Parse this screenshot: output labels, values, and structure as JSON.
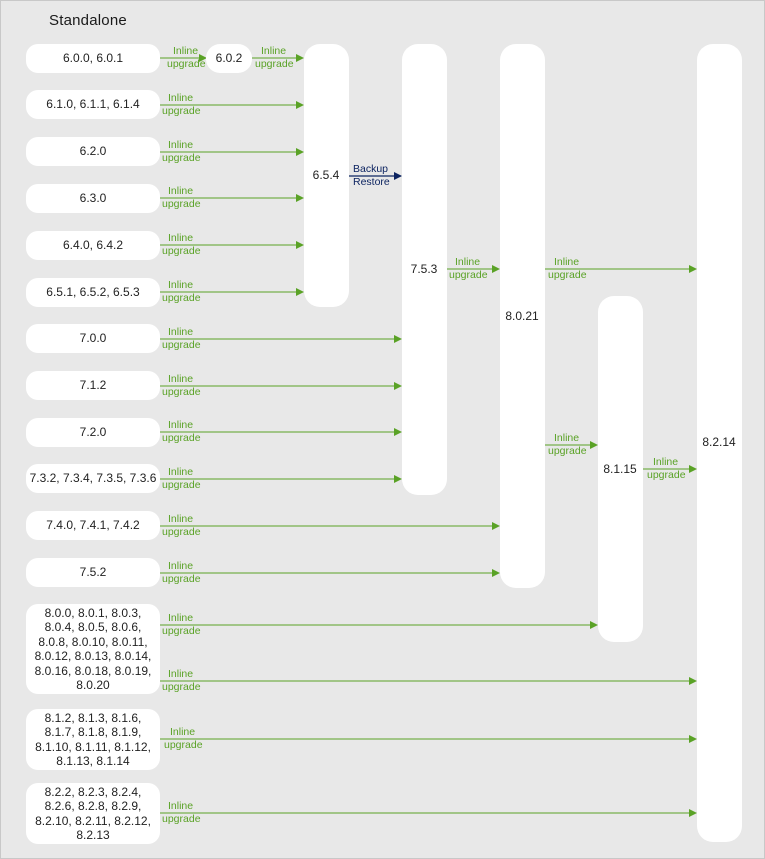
{
  "title": "Standalone",
  "versions": {
    "v602": "6.0.2",
    "v654": "6.5.4",
    "v753": "7.5.3",
    "v8021": "8.0.21",
    "v8115": "8.1.15",
    "v8214": "8.2.14"
  },
  "sources": [
    "6.0.0, 6.0.1",
    "6.1.0, 6.1.1, 6.1.4",
    "6.2.0",
    "6.3.0",
    "6.4.0, 6.4.2",
    "6.5.1, 6.5.2, 6.5.3",
    "7.0.0",
    "7.1.2",
    "7.2.0",
    "7.3.2, 7.3.4, 7.3.5, 7.3.6",
    "7.4.0, 7.4.1, 7.4.2",
    "7.5.2",
    "8.0.0, 8.0.1, 8.0.3,\n8.0.4, 8.0.5, 8.0.6,\n8.0.8, 8.0.10, 8.0.11,\n8.0.12, 8.0.13, 8.0.14,\n8.0.16, 8.0.18, 8.0.19,\n8.0.20",
    "8.1.2, 8.1.3, 8.1.6,\n8.1.7, 8.1.8, 8.1.9,\n8.1.10, 8.1.11, 8.1.12,\n8.1.13, 8.1.14",
    "8.2.2, 8.2.3, 8.2.4,\n8.2.6, 8.2.8, 8.2.9,\n8.2.10, 8.2.11, 8.2.12,\n8.2.13"
  ],
  "labels": {
    "inline": "Inline",
    "upgrade": "upgrade",
    "backup": "Backup",
    "restore": "Restore"
  },
  "colors": {
    "inline_upgrade": "#5aa226",
    "backup_restore": "#0d2461",
    "box": "#ffffff",
    "background": "#e8e8e8"
  }
}
